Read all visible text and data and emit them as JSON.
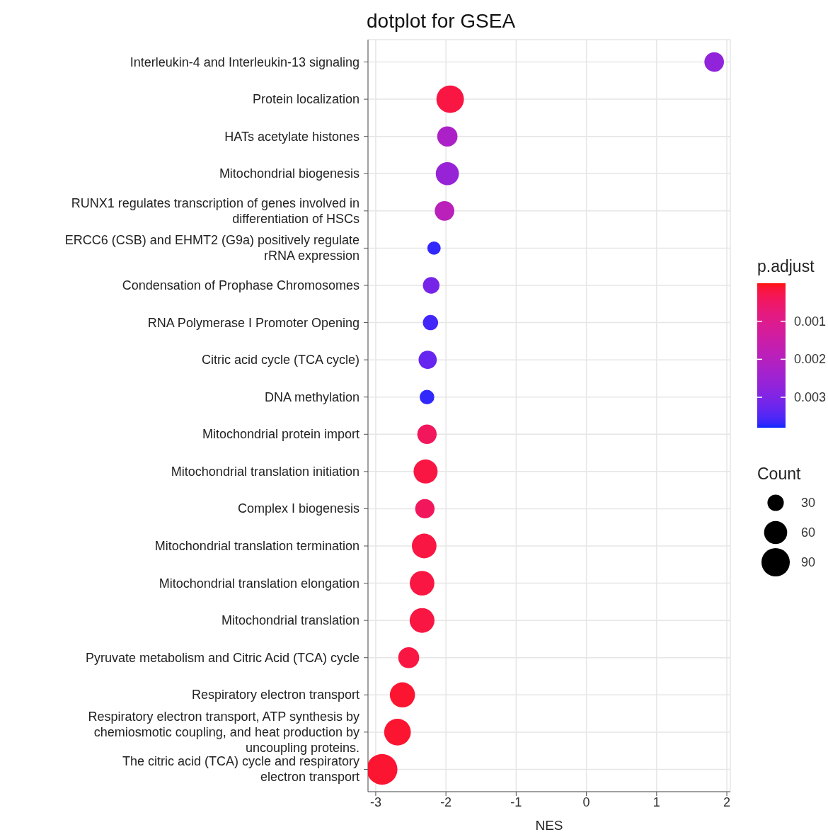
{
  "chart_data": {
    "type": "bubble",
    "title": "dotplot for GSEA",
    "xlabel": "NES",
    "clabel": "p.adjust",
    "legend_title": "Count",
    "orientation": "horizontal",
    "marker": "circle",
    "grid": true,
    "categories": [
      "Interleukin-4 and Interleukin-13 signaling",
      "Protein localization",
      "HATs acetylate histones",
      "Mitochondrial biogenesis",
      "RUNX1 regulates transcription of genes involved in differentiation of HSCs",
      "ERCC6 (CSB) and EHMT2 (G9a) positively regulate rRNA expression",
      "Condensation of Prophase Chromosomes",
      "RNA Polymerase I Promoter Opening",
      "Citric acid cycle (TCA cycle)",
      "DNA methylation",
      "Mitochondrial protein import",
      "Mitochondrial translation initiation",
      "Complex I biogenesis",
      "Mitochondrial translation termination",
      "Mitochondrial translation elongation",
      "Mitochondrial translation",
      "Pyruvate metabolism and Citric Acid (TCA) cycle",
      "Respiratory electron transport",
      "Respiratory electron transport, ATP synthesis by chemiosmotic coupling, and heat production by uncoupling proteins.",
      "The citric acid (TCA) cycle and respiratory electron transport"
    ],
    "values": [
      1.82,
      -1.94,
      -1.98,
      -1.98,
      -2.02,
      -2.17,
      -2.21,
      -2.22,
      -2.26,
      -2.27,
      -2.27,
      -2.29,
      -2.3,
      -2.31,
      -2.34,
      -2.34,
      -2.53,
      -2.62,
      -2.69,
      -2.91
    ],
    "sizes": [
      43,
      85,
      46,
      60,
      43,
      20,
      31,
      26,
      37,
      24,
      42,
      65,
      42,
      68,
      68,
      69,
      49,
      71,
      80,
      106
    ],
    "cvalues": [
      0.0027,
      0.0002,
      0.0022,
      0.0026,
      0.0019,
      0.0037,
      0.0031,
      0.0036,
      0.0033,
      0.0037,
      0.0004,
      0.0002,
      0.0004,
      0.0002,
      0.0002,
      0.0002,
      0.0002,
      0.0001,
      0.0001,
      0.0001
    ],
    "size_legend": [
      30,
      60,
      90
    ],
    "xlim": [
      -3.11,
      2.05
    ],
    "xticks": [
      -3,
      -2,
      -1,
      0,
      1,
      2
    ],
    "clim": [
      0,
      0.0038
    ],
    "cticks": [
      0.001,
      0.002,
      0.003
    ]
  }
}
